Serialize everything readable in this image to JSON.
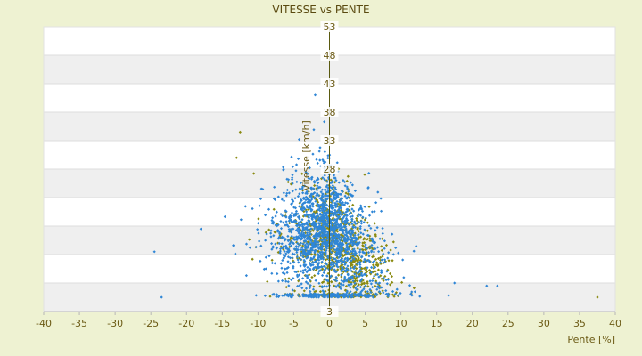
{
  "chart_data": {
    "type": "scatter",
    "title": "VITESSE vs PENTE",
    "xlabel": "Pente [%]",
    "ylabel": "Vitesse [km/h]",
    "xlim": [
      -40,
      40
    ],
    "ylim": [
      3,
      53
    ],
    "x_ticks": [
      -40,
      -35,
      -30,
      -25,
      -20,
      -15,
      -10,
      -5,
      0,
      5,
      10,
      15,
      20,
      25,
      30,
      35,
      40
    ],
    "y_ticks": [
      3,
      8,
      13,
      18,
      23,
      28,
      33,
      38,
      43,
      48,
      53
    ],
    "y_tick_labels_shown": [
      "53",
      "48",
      "43",
      "38",
      "33",
      "28",
      "",
      "",
      "",
      "",
      "3"
    ],
    "grid": "horizontal bands",
    "legend": "none",
    "series": [
      {
        "color": "#8a8a10",
        "marker": "diamond"
      },
      {
        "color": "#2f86d6",
        "marker": "diamond"
      }
    ],
    "notable_points": [
      {
        "x": -24.5,
        "y": 13.5,
        "series": 1
      },
      {
        "x": -23.5,
        "y": 5.5,
        "series": 1
      },
      {
        "x": -18.0,
        "y": 17.5,
        "series": 1
      },
      {
        "x": -13.0,
        "y": 30.0,
        "series": 0
      },
      {
        "x": -12.5,
        "y": 34.5,
        "series": 0
      },
      {
        "x": -2.0,
        "y": 41.0,
        "series": 1
      },
      {
        "x": 37.5,
        "y": 5.5,
        "series": 0
      },
      {
        "x": 23.5,
        "y": 7.5,
        "series": 1
      },
      {
        "x": 22.0,
        "y": 7.5,
        "series": 1
      },
      {
        "x": 17.5,
        "y": 8.0,
        "series": 1
      }
    ],
    "clusters": [
      {
        "series": 0,
        "center_x": 1.0,
        "center_y": 16.0,
        "spread_x": 4.0,
        "spread_y": 8.0,
        "count": 900
      },
      {
        "series": 1,
        "center_x": -0.5,
        "center_y": 17.5,
        "spread_x": 4.5,
        "spread_y": 9.0,
        "count": 1800
      }
    ],
    "colors": {
      "plot_bg": "#ffffff",
      "band_bg": "#efefef",
      "page_bg": "#eef2d2",
      "vline": "#5a5a10",
      "axis": "#b7b7b7"
    }
  }
}
